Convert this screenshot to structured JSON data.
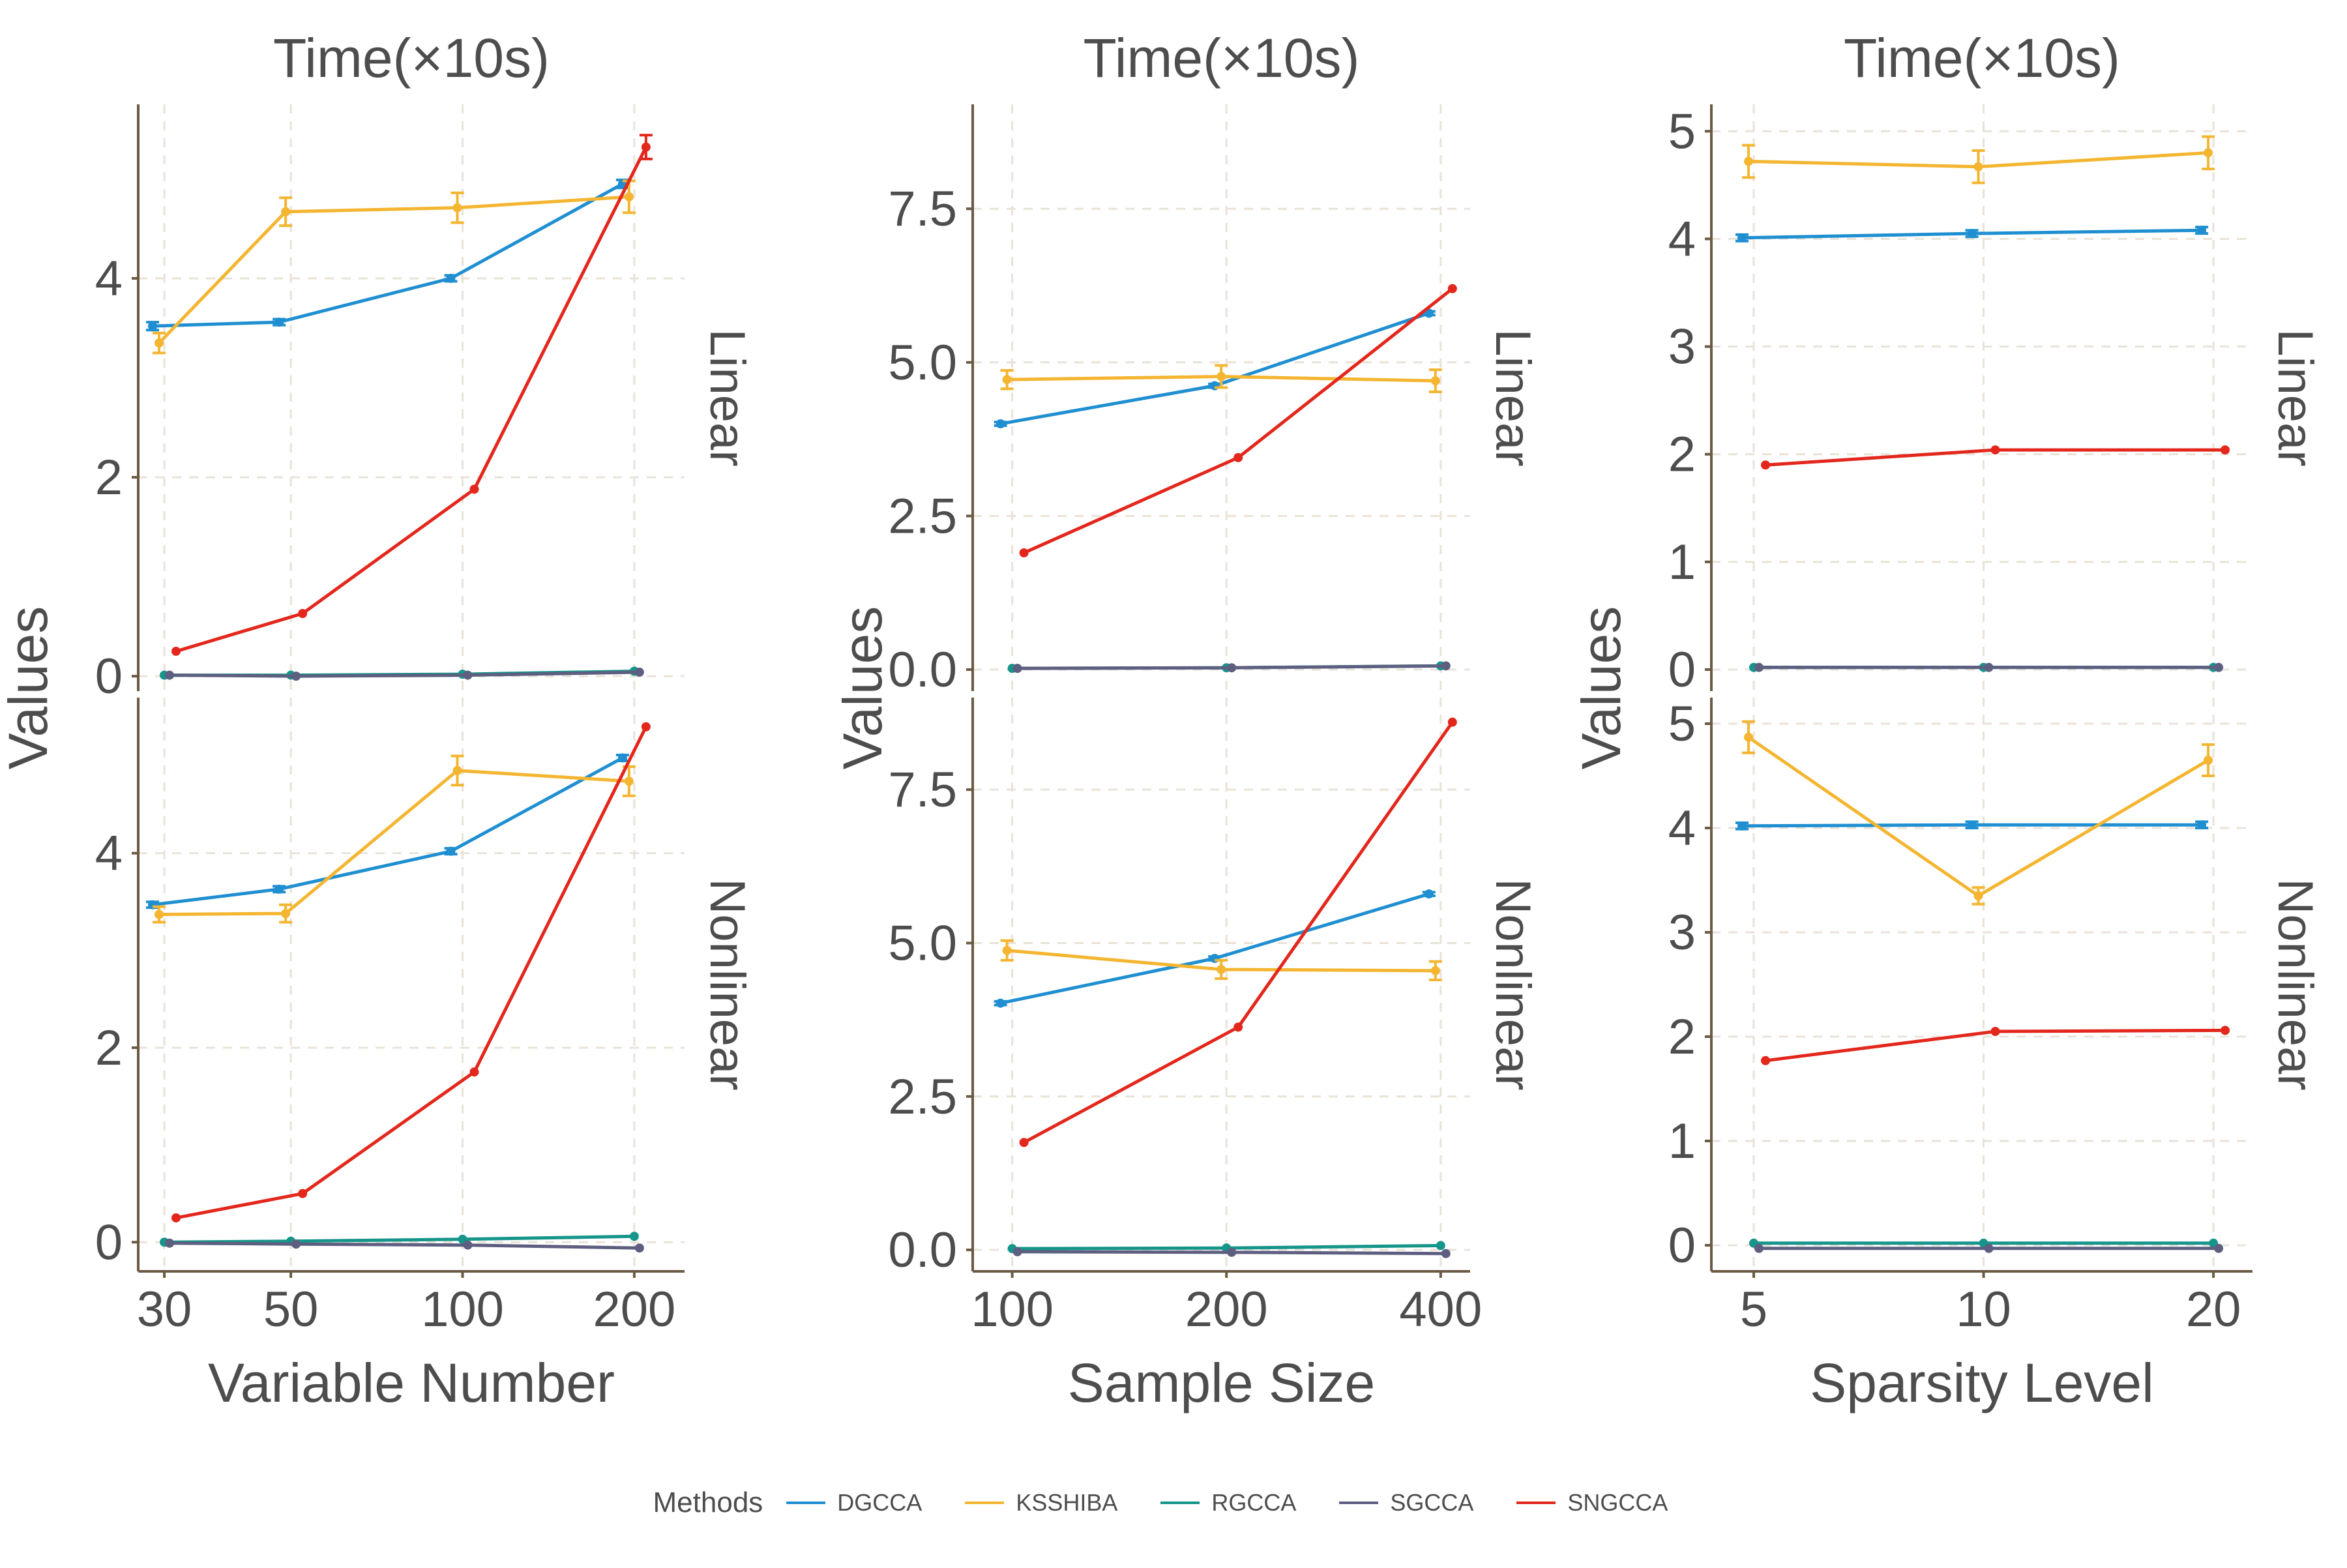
{
  "legend": {
    "title": "Methods",
    "items": [
      {
        "name": "DGCCA",
        "color": "#1f8fd1"
      },
      {
        "name": "KSSHIBA",
        "color": "#f4b531"
      },
      {
        "name": "RGCCA",
        "color": "#16958a"
      },
      {
        "name": "SGCCA",
        "color": "#5e5f80"
      },
      {
        "name": "SNGCCA",
        "color": "#e3271c"
      }
    ]
  },
  "chart_data": [
    {
      "type": "line",
      "title": "Time(×10s)",
      "xlabel": "Variable Number",
      "ylabel": "Values",
      "x_scale": "log",
      "x_ticks": [
        30,
        50,
        100,
        200
      ],
      "x_tick_labels": [
        "30",
        "50",
        "100",
        "200"
      ],
      "xlim": [
        27,
        245
      ],
      "grid": true,
      "panels": [
        {
          "strip": "Linear",
          "ylim": [
            -0.15,
            5.75
          ],
          "y_ticks": [
            0,
            2,
            4
          ],
          "y_tick_labels": [
            "0",
            "2",
            "4"
          ],
          "series": [
            {
              "name": "DGCCA",
              "x": [
                30,
                50,
                100,
                200
              ],
              "y": [
                3.52,
                3.56,
                4.0,
                4.95
              ],
              "err": [
                0.04,
                0.03,
                0.03,
                0.04
              ]
            },
            {
              "name": "KSSHIBA",
              "x": [
                30,
                50,
                100,
                200
              ],
              "y": [
                3.35,
                4.67,
                4.71,
                4.82
              ],
              "err": [
                0.1,
                0.14,
                0.15,
                0.16
              ]
            },
            {
              "name": "RGCCA",
              "x": [
                30,
                50,
                100,
                200
              ],
              "y": [
                0.01,
                0.01,
                0.02,
                0.05
              ],
              "err": [
                0.0,
                0.0,
                0.0,
                0.0
              ]
            },
            {
              "name": "SGCCA",
              "x": [
                30,
                50,
                100,
                200
              ],
              "y": [
                0.01,
                0.0,
                0.01,
                0.04
              ],
              "err": [
                0.0,
                0.0,
                0.0,
                0.0
              ]
            },
            {
              "name": "SNGCCA",
              "x": [
                30,
                50,
                100,
                200
              ],
              "y": [
                0.25,
                0.63,
                1.88,
                5.32
              ],
              "err": [
                0.0,
                0.0,
                0.0,
                0.12
              ]
            }
          ]
        },
        {
          "strip": "Nonlinear",
          "ylim": [
            -0.3,
            5.6
          ],
          "y_ticks": [
            0,
            2,
            4
          ],
          "y_tick_labels": [
            "0",
            "2",
            "4"
          ],
          "series": [
            {
              "name": "DGCCA",
              "x": [
                30,
                50,
                100,
                200
              ],
              "y": [
                3.47,
                3.63,
                4.02,
                4.98
              ],
              "err": [
                0.03,
                0.03,
                0.03,
                0.03
              ]
            },
            {
              "name": "KSSHIBA",
              "x": [
                30,
                50,
                100,
                200
              ],
              "y": [
                3.37,
                3.38,
                4.85,
                4.74
              ],
              "err": [
                0.08,
                0.09,
                0.15,
                0.15
              ]
            },
            {
              "name": "RGCCA",
              "x": [
                30,
                50,
                100,
                200
              ],
              "y": [
                0.0,
                0.01,
                0.03,
                0.06
              ],
              "err": [
                0.0,
                0.0,
                0.0,
                0.0
              ]
            },
            {
              "name": "SGCCA",
              "x": [
                30,
                50,
                100,
                200
              ],
              "y": [
                -0.01,
                -0.02,
                -0.03,
                -0.06
              ],
              "err": [
                0.0,
                0.0,
                0.0,
                0.0
              ]
            },
            {
              "name": "SNGCCA",
              "x": [
                30,
                50,
                100,
                200
              ],
              "y": [
                0.25,
                0.5,
                1.75,
                5.3
              ],
              "err": [
                0.0,
                0.0,
                0.0,
                0.0
              ]
            }
          ]
        }
      ]
    },
    {
      "type": "line",
      "title": "Time(×10s)",
      "xlabel": "Sample Size",
      "ylabel": "Values",
      "x_scale": "log",
      "x_ticks": [
        100,
        200,
        400
      ],
      "x_tick_labels": [
        "100",
        "200",
        "400"
      ],
      "xlim": [
        88,
        440
      ],
      "grid": true,
      "panels": [
        {
          "strip": "Linear",
          "ylim": [
            -0.35,
            9.2
          ],
          "y_ticks": [
            0,
            2.5,
            5,
            7.5
          ],
          "y_tick_labels": [
            "0.0",
            "2.5",
            "5.0",
            "7.5"
          ],
          "series": [
            {
              "name": "DGCCA",
              "x": [
                100,
                200,
                400
              ],
              "y": [
                4.0,
                4.62,
                5.8
              ],
              "err": [
                0.03,
                0.03,
                0.03
              ]
            },
            {
              "name": "KSSHIBA",
              "x": [
                100,
                200,
                400
              ],
              "y": [
                4.72,
                4.77,
                4.7
              ],
              "err": [
                0.15,
                0.18,
                0.18
              ]
            },
            {
              "name": "RGCCA",
              "x": [
                100,
                200,
                400
              ],
              "y": [
                0.02,
                0.03,
                0.06
              ],
              "err": [
                0.0,
                0.0,
                0.0
              ]
            },
            {
              "name": "SGCCA",
              "x": [
                100,
                200,
                400
              ],
              "y": [
                0.02,
                0.03,
                0.06
              ],
              "err": [
                0.0,
                0.0,
                0.0
              ]
            },
            {
              "name": "SNGCCA",
              "x": [
                100,
                200,
                400
              ],
              "y": [
                1.9,
                3.45,
                6.2
              ],
              "err": [
                0.0,
                0.0,
                0.0
              ]
            }
          ]
        },
        {
          "strip": "Nonlinear",
          "ylim": [
            -0.35,
            9.0
          ],
          "y_ticks": [
            0,
            2.5,
            5,
            7.5
          ],
          "y_tick_labels": [
            "0.0",
            "2.5",
            "5.0",
            "7.5"
          ],
          "series": [
            {
              "name": "DGCCA",
              "x": [
                100,
                200,
                400
              ],
              "y": [
                4.02,
                4.75,
                5.8
              ],
              "err": [
                0.03,
                0.03,
                0.03
              ]
            },
            {
              "name": "KSSHIBA",
              "x": [
                100,
                200,
                400
              ],
              "y": [
                4.88,
                4.57,
                4.55
              ],
              "err": [
                0.16,
                0.15,
                0.15
              ]
            },
            {
              "name": "RGCCA",
              "x": [
                100,
                200,
                400
              ],
              "y": [
                0.02,
                0.03,
                0.07
              ],
              "err": [
                0.0,
                0.0,
                0.0
              ]
            },
            {
              "name": "SGCCA",
              "x": [
                100,
                200,
                400
              ],
              "y": [
                -0.03,
                -0.04,
                -0.06
              ],
              "err": [
                0.0,
                0.0,
                0.0
              ]
            },
            {
              "name": "SNGCCA",
              "x": [
                100,
                200,
                400
              ],
              "y": [
                1.75,
                3.63,
                8.6
              ],
              "err": [
                0.0,
                0.0,
                0.0
              ]
            }
          ]
        }
      ]
    },
    {
      "type": "line",
      "title": "Time(×10s)",
      "xlabel": "Sparsity Level",
      "ylabel": "Values",
      "x_scale": "log",
      "x_ticks": [
        5,
        10,
        20
      ],
      "x_tick_labels": [
        "5",
        "10",
        "20"
      ],
      "xlim": [
        4.4,
        22.5
      ],
      "grid": true,
      "panels": [
        {
          "strip": "Linear",
          "ylim": [
            -0.2,
            5.25
          ],
          "y_ticks": [
            0,
            1,
            2,
            3,
            4,
            5
          ],
          "y_tick_labels": [
            "0",
            "1",
            "2",
            "3",
            "4",
            "5"
          ],
          "series": [
            {
              "name": "DGCCA",
              "x": [
                5,
                10,
                20
              ],
              "y": [
                4.01,
                4.05,
                4.08
              ],
              "err": [
                0.03,
                0.03,
                0.03
              ]
            },
            {
              "name": "KSSHIBA",
              "x": [
                5,
                10,
                20
              ],
              "y": [
                4.72,
                4.67,
                4.8
              ],
              "err": [
                0.15,
                0.15,
                0.15
              ]
            },
            {
              "name": "RGCCA",
              "x": [
                5,
                10,
                20
              ],
              "y": [
                0.02,
                0.02,
                0.02
              ],
              "err": [
                0.0,
                0.0,
                0.0
              ]
            },
            {
              "name": "SGCCA",
              "x": [
                5,
                10,
                20
              ],
              "y": [
                0.02,
                0.02,
                0.02
              ],
              "err": [
                0.0,
                0.0,
                0.0
              ]
            },
            {
              "name": "SNGCCA",
              "x": [
                5,
                10,
                20
              ],
              "y": [
                1.9,
                2.04,
                2.04
              ],
              "err": [
                0.0,
                0.0,
                0.0
              ]
            }
          ]
        },
        {
          "strip": "Nonlinear",
          "ylim": [
            -0.25,
            5.25
          ],
          "y_ticks": [
            0,
            1,
            2,
            3,
            4,
            5
          ],
          "y_tick_labels": [
            "0",
            "1",
            "2",
            "3",
            "4",
            "5"
          ],
          "series": [
            {
              "name": "DGCCA",
              "x": [
                5,
                10,
                20
              ],
              "y": [
                4.02,
                4.03,
                4.03
              ],
              "err": [
                0.03,
                0.03,
                0.03
              ]
            },
            {
              "name": "KSSHIBA",
              "x": [
                5,
                10,
                20
              ],
              "y": [
                4.87,
                3.35,
                4.65
              ],
              "err": [
                0.15,
                0.08,
                0.15
              ]
            },
            {
              "name": "RGCCA",
              "x": [
                5,
                10,
                20
              ],
              "y": [
                0.02,
                0.02,
                0.02
              ],
              "err": [
                0.0,
                0.0,
                0.0
              ]
            },
            {
              "name": "SGCCA",
              "x": [
                5,
                10,
                20
              ],
              "y": [
                -0.03,
                -0.03,
                -0.03
              ],
              "err": [
                0.0,
                0.0,
                0.0
              ]
            },
            {
              "name": "SNGCCA",
              "x": [
                5,
                10,
                20
              ],
              "y": [
                1.77,
                2.05,
                2.06
              ],
              "err": [
                0.0,
                0.0,
                0.0
              ]
            }
          ]
        }
      ]
    }
  ]
}
